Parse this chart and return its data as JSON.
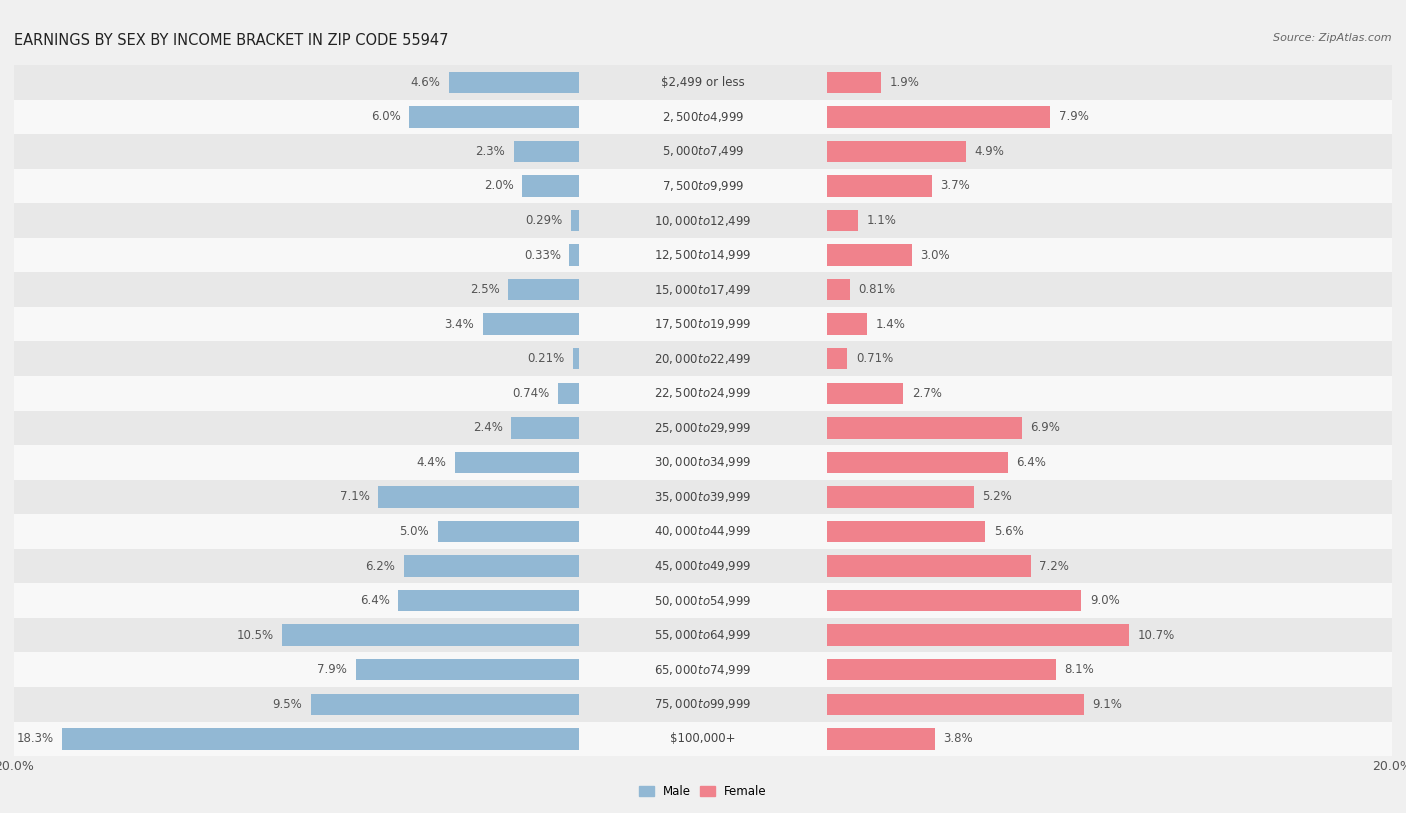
{
  "title": "EARNINGS BY SEX BY INCOME BRACKET IN ZIP CODE 55947",
  "source": "Source: ZipAtlas.com",
  "categories": [
    "$2,499 or less",
    "$2,500 to $4,999",
    "$5,000 to $7,499",
    "$7,500 to $9,999",
    "$10,000 to $12,499",
    "$12,500 to $14,999",
    "$15,000 to $17,499",
    "$17,500 to $19,999",
    "$20,000 to $22,499",
    "$22,500 to $24,999",
    "$25,000 to $29,999",
    "$30,000 to $34,999",
    "$35,000 to $39,999",
    "$40,000 to $44,999",
    "$45,000 to $49,999",
    "$50,000 to $54,999",
    "$55,000 to $64,999",
    "$65,000 to $74,999",
    "$75,000 to $99,999",
    "$100,000+"
  ],
  "male_values": [
    4.6,
    6.0,
    2.3,
    2.0,
    0.29,
    0.33,
    2.5,
    3.4,
    0.21,
    0.74,
    2.4,
    4.4,
    7.1,
    5.0,
    6.2,
    6.4,
    10.5,
    7.9,
    9.5,
    18.3
  ],
  "female_values": [
    1.9,
    7.9,
    4.9,
    3.7,
    1.1,
    3.0,
    0.81,
    1.4,
    0.71,
    2.7,
    6.9,
    6.4,
    5.2,
    5.6,
    7.2,
    9.0,
    10.7,
    8.1,
    9.1,
    3.8
  ],
  "male_color": "#92b8d4",
  "female_color": "#f0828c",
  "bar_height": 0.62,
  "xlim": 20.0,
  "background_color": "#f0f0f0",
  "row_color_odd": "#e8e8e8",
  "row_color_even": "#f8f8f8",
  "title_fontsize": 10.5,
  "label_fontsize": 8.5,
  "value_fontsize": 8.5,
  "tick_fontsize": 9,
  "center_label_color": "#444444",
  "value_label_color": "#555555"
}
